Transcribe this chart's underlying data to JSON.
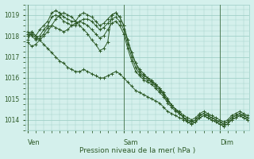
{
  "title": "",
  "xlabel": "Pression niveau de la mer( hPa )",
  "background_color": "#d4f0ec",
  "grid_color": "#a0cfc8",
  "line_color": "#2d5a27",
  "text_color": "#2d5a27",
  "ylim": [
    1013.5,
    1019.5
  ],
  "yticks": [
    1014,
    1015,
    1016,
    1017,
    1018,
    1019
  ],
  "day_labels": [
    "Ven",
    "Sam",
    "Dim"
  ],
  "day_positions": [
    0,
    24,
    48
  ],
  "n_points": 56,
  "series": [
    [
      1017.8,
      1018.2,
      1018.0,
      1018.3,
      1018.5,
      1018.7,
      1019.1,
      1019.2,
      1019.1,
      1018.9,
      1018.8,
      1018.7,
      1018.7,
      1019.0,
      1019.1,
      1019.0,
      1018.9,
      1018.7,
      1018.5,
      1018.6,
      1018.8,
      1019.0,
      1019.1,
      1018.9,
      1018.5,
      1017.8,
      1017.2,
      1016.7,
      1016.3,
      1016.1,
      1016.0,
      1015.9,
      1015.7,
      1015.5,
      1015.3,
      1015.0,
      1014.7,
      1014.5,
      1014.3,
      1014.1,
      1014.0,
      1013.9,
      1014.0,
      1014.2,
      1014.3,
      1014.2,
      1014.1,
      1014.0,
      1013.9,
      1013.8,
      1013.9,
      1014.1,
      1014.2,
      1014.3,
      1014.2,
      1014.1
    ],
    [
      1018.0,
      1018.1,
      1017.9,
      1018.0,
      1018.3,
      1018.5,
      1018.9,
      1019.0,
      1018.9,
      1018.7,
      1018.6,
      1018.5,
      1018.5,
      1018.7,
      1018.8,
      1018.8,
      1018.7,
      1018.5,
      1018.3,
      1018.4,
      1018.6,
      1018.8,
      1018.9,
      1018.7,
      1018.3,
      1017.6,
      1017.0,
      1016.5,
      1016.2,
      1016.0,
      1015.9,
      1015.8,
      1015.6,
      1015.4,
      1015.2,
      1014.9,
      1014.7,
      1014.5,
      1014.4,
      1014.2,
      1014.1,
      1014.0,
      1014.1,
      1014.3,
      1014.4,
      1014.3,
      1014.2,
      1014.1,
      1014.0,
      1013.9,
      1014.0,
      1014.2,
      1014.3,
      1014.4,
      1014.3,
      1014.2
    ],
    [
      1018.2,
      1018.0,
      1017.8,
      1017.9,
      1018.1,
      1018.4,
      1018.5,
      1018.4,
      1018.3,
      1018.2,
      1018.3,
      1018.5,
      1018.6,
      1018.7,
      1018.6,
      1018.5,
      1018.3,
      1018.1,
      1017.9,
      1018.0,
      1018.3,
      1018.6,
      1018.7,
      1018.5,
      1018.1,
      1017.4,
      1016.8,
      1016.3,
      1016.1,
      1015.9,
      1015.8,
      1015.7,
      1015.5,
      1015.3,
      1015.1,
      1014.8,
      1014.6,
      1014.4,
      1014.3,
      1014.1,
      1014.0,
      1013.9,
      1014.0,
      1014.2,
      1014.3,
      1014.2,
      1014.1,
      1014.0,
      1013.9,
      1013.8,
      1013.9,
      1014.1,
      1014.2,
      1014.3,
      1014.2,
      1014.1
    ],
    [
      1017.7,
      1017.5,
      1017.6,
      1017.8,
      1018.0,
      1018.2,
      1018.5,
      1018.8,
      1019.0,
      1019.1,
      1019.0,
      1018.9,
      1018.7,
      1018.5,
      1018.3,
      1018.1,
      1017.8,
      1017.6,
      1017.3,
      1017.4,
      1017.7,
      1019.0,
      1019.1,
      1018.9,
      1018.5,
      1017.8,
      1017.2,
      1016.7,
      1016.4,
      1016.2,
      1016.0,
      1015.8,
      1015.7,
      1015.5,
      1015.2,
      1014.9,
      1014.7,
      1014.5,
      1014.3,
      1014.1,
      1013.9,
      1013.8,
      1013.9,
      1014.1,
      1014.2,
      1014.1,
      1014.0,
      1013.9,
      1013.8,
      1013.7,
      1013.8,
      1014.0,
      1014.1,
      1014.2,
      1014.1,
      1014.0
    ],
    [
      1018.1,
      1018.2,
      1018.0,
      1017.8,
      1017.6,
      1017.4,
      1017.2,
      1017.0,
      1016.8,
      1016.7,
      1016.5,
      1016.4,
      1016.3,
      1016.3,
      1016.4,
      1016.3,
      1016.2,
      1016.1,
      1016.0,
      1016.0,
      1016.1,
      1016.2,
      1016.3,
      1016.2,
      1016.0,
      1015.8,
      1015.6,
      1015.4,
      1015.3,
      1015.2,
      1015.1,
      1015.0,
      1014.9,
      1014.8,
      1014.6,
      1014.4,
      1014.3,
      1014.2,
      1014.1,
      1014.0,
      1013.9,
      1013.8,
      1013.9,
      1014.1,
      1014.2,
      1014.1,
      1014.0,
      1013.9,
      1013.8,
      1013.7,
      1013.8,
      1014.0,
      1014.1,
      1014.2,
      1014.1,
      1014.0
    ]
  ]
}
